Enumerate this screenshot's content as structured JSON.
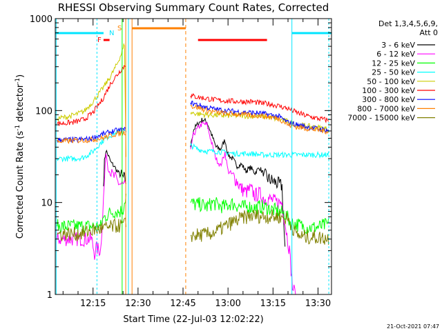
{
  "chart_data": {
    "type": "line",
    "title": "RHESSI Observing Summary Count Rates, Corrected",
    "xlabel": "Start Time (22-Jul-03 12:02:22)",
    "ylabel_main": "Corrected Count Rate (s",
    "ylabel_sup1": "-1",
    "ylabel_mid": " detector",
    "ylabel_sup2": "-1",
    "ylabel_end": ")",
    "yscale": "log",
    "ylim": [
      1,
      1000
    ],
    "xlim_minutes": [
      2.4,
      94.5
    ],
    "x_ticks": [
      {
        "minute": 15,
        "label": "12:15"
      },
      {
        "minute": 30,
        "label": "12:30"
      },
      {
        "minute": 45,
        "label": "12:45"
      },
      {
        "minute": 60,
        "label": "13:00"
      },
      {
        "minute": 75,
        "label": "13:15"
      },
      {
        "minute": 90,
        "label": "13:30"
      }
    ],
    "y_ticks": [
      {
        "value": 1,
        "label": "1"
      },
      {
        "value": 10,
        "label": "10"
      },
      {
        "value": 100,
        "label": "100"
      },
      {
        "value": 1000,
        "label": "1000"
      }
    ],
    "legend_header": [
      "Det 1,3,4,5,6,9,",
      "Att 0"
    ],
    "legend_position": "right",
    "flags": [
      {
        "label": "F",
        "color": "#ff0000"
      },
      {
        "label": "N",
        "color": "#00e5ff"
      },
      {
        "label": "S",
        "color": "#ff8000"
      }
    ],
    "footer": "21-Oct-2021 07:47",
    "series": [
      {
        "name": "3 - 6 keV",
        "color": "#000000",
        "x": [
          18.5,
          18.8,
          19.3,
          20,
          21,
          22,
          23,
          24,
          25.5,
          26,
          47.5,
          48.5,
          50,
          51.5,
          53,
          54.5,
          56,
          57.5,
          59,
          60,
          61.5,
          63,
          64.5,
          66,
          67.5,
          69,
          70.5,
          72,
          73.5,
          75,
          76.5,
          78,
          79
        ],
        "y": [
          15,
          28,
          37,
          33,
          27,
          25,
          22,
          20,
          18,
          17,
          40,
          62,
          72,
          80,
          75,
          55,
          40,
          38,
          48,
          33,
          30,
          25,
          26,
          22,
          24,
          21,
          24,
          20,
          18,
          17,
          16,
          15,
          3
        ]
      },
      {
        "name": "6 - 12 keV",
        "color": "#ff00ff",
        "x": [
          3,
          6,
          9,
          12,
          14.5,
          15.5,
          16,
          17.5,
          18.5,
          18.8,
          19.3,
          20,
          21,
          22,
          23,
          24,
          25.5,
          26,
          47.5,
          48.5,
          50,
          51.5,
          53,
          54.5,
          56,
          57.5,
          59,
          60,
          61.5,
          63,
          64.5,
          66,
          67.5,
          69,
          70.5,
          72,
          73.5,
          75,
          76.5,
          78,
          79,
          80.5,
          81.5,
          82.5
        ],
        "y": [
          4,
          4,
          4,
          4,
          4,
          2.8,
          3.2,
          3,
          11,
          17,
          36,
          24,
          20,
          19,
          17,
          16,
          15,
          14,
          38,
          55,
          65,
          72,
          70,
          45,
          30,
          25,
          35,
          22,
          20,
          17,
          14,
          13,
          14,
          12,
          12.5,
          11,
          11,
          10.5,
          10,
          10,
          6,
          3,
          1.2,
          1
        ]
      },
      {
        "name": "12 - 25 keV",
        "color": "#00ff00",
        "x": [
          3,
          12,
          15,
          17.8,
          18.2,
          19,
          20,
          21,
          22,
          23,
          24,
          25,
          26,
          47.5,
          49,
          51,
          53,
          55,
          57,
          59,
          61,
          63,
          65,
          67,
          69,
          71,
          73,
          75,
          77,
          79,
          81,
          83,
          85,
          88,
          91,
          93.5
        ],
        "y": [
          5.5,
          5.5,
          5.5,
          5.5,
          6.5,
          7,
          7.5,
          7.8,
          8,
          8,
          8,
          8.5,
          12,
          10,
          9.5,
          9.5,
          9,
          10,
          9.2,
          9,
          9.8,
          9.3,
          8.9,
          9,
          8.7,
          9,
          8.8,
          8.3,
          8,
          7.5,
          6,
          5.8,
          5.5,
          5.3,
          5.5,
          5.8
        ]
      },
      {
        "name": "25 - 50 keV",
        "color": "#00ffff",
        "x": [
          3,
          6,
          9,
          12,
          15,
          18,
          20,
          22,
          24,
          26,
          47.5,
          50,
          53,
          56,
          59,
          62,
          65,
          68,
          71,
          74,
          77,
          80,
          83,
          86,
          89,
          92,
          93.5
        ],
        "y": [
          30,
          30,
          30,
          31,
          36,
          46,
          52,
          56,
          58,
          60,
          42,
          38,
          36,
          36,
          35,
          34,
          34,
          34,
          33,
          33,
          33,
          33,
          33,
          33,
          33,
          33,
          33
        ]
      },
      {
        "name": "50 - 100 keV",
        "color": "#cccc00",
        "x": [
          3,
          6,
          9,
          12,
          15,
          18,
          21,
          23,
          24.5,
          25.5,
          26,
          47.5,
          50,
          53,
          56,
          59,
          62,
          65,
          68,
          71,
          74,
          77,
          80,
          83,
          86,
          89,
          92,
          93.5
        ],
        "y": [
          82,
          85,
          90,
          98,
          125,
          170,
          240,
          320,
          420,
          530,
          30,
          95,
          92,
          90,
          89,
          88,
          88,
          88,
          87,
          86,
          84,
          80,
          76,
          70,
          68,
          66,
          64,
          63
        ]
      },
      {
        "name": "100 - 300 keV",
        "color": "#ff0000",
        "x": [
          3,
          6,
          9,
          12,
          15,
          18,
          21,
          24,
          26,
          47.5,
          50,
          53,
          56,
          59,
          62,
          65,
          68,
          71,
          74,
          77,
          80,
          83,
          86,
          89,
          92,
          93.5
        ],
        "y": [
          72,
          73,
          75,
          80,
          95,
          130,
          200,
          270,
          320,
          145,
          140,
          135,
          130,
          128,
          126,
          125,
          125,
          120,
          118,
          112,
          105,
          95,
          88,
          83,
          80,
          78
        ]
      },
      {
        "name": "300 - 800 keV",
        "color": "#0000ff",
        "x": [
          3,
          8,
          14,
          18,
          22,
          26,
          47.5,
          50,
          53,
          56,
          59,
          62,
          65,
          68,
          71,
          74,
          77,
          80,
          83,
          86,
          89,
          92,
          93.5
        ],
        "y": [
          48,
          48,
          49,
          55,
          60,
          62,
          122,
          115,
          108,
          103,
          100,
          98,
          96,
          95,
          93,
          90,
          86,
          74,
          70,
          67,
          64,
          62,
          61
        ]
      },
      {
        "name": "800 - 7000 keV",
        "color": "#ff8000",
        "x": [
          3,
          8,
          14,
          18,
          22,
          26,
          47.5,
          50,
          53,
          56,
          59,
          62,
          65,
          68,
          71,
          74,
          77,
          80,
          83,
          86,
          89,
          92,
          93.5
        ],
        "y": [
          46,
          47,
          48,
          50,
          55,
          58,
          112,
          108,
          100,
          96,
          93,
          92,
          90,
          89,
          88,
          85,
          82,
          70,
          66,
          64,
          62,
          60,
          59
        ]
      },
      {
        "name": "7000 - 15000 keV",
        "color": "#808000",
        "x": [
          3,
          6,
          9,
          12,
          15,
          18,
          20,
          22,
          24,
          26,
          47.5,
          50,
          53,
          56,
          59,
          62,
          65,
          68,
          71,
          74,
          77,
          80,
          83,
          86,
          89,
          92,
          93.5
        ],
        "y": [
          4.5,
          4.6,
          4.5,
          4.7,
          5,
          5.2,
          5.3,
          5.5,
          5.6,
          5.8,
          4.4,
          4.4,
          4.5,
          4.8,
          5.5,
          6.2,
          6.8,
          7.2,
          7.1,
          7,
          7,
          6.6,
          4.4,
          4.2,
          4.2,
          4.1,
          4.1
        ]
      }
    ]
  }
}
